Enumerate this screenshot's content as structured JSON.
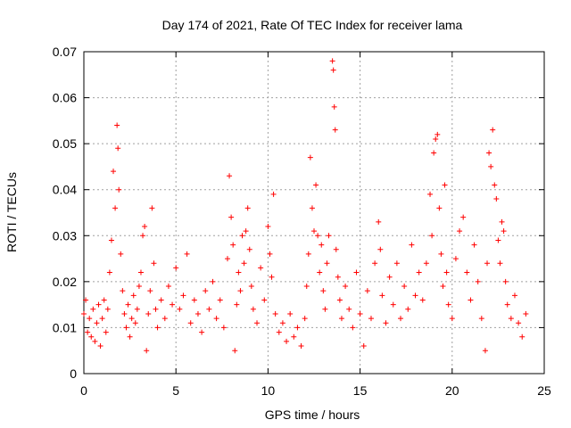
{
  "chart_data": {
    "type": "scatter",
    "title": "Day 174 of 2021, Rate Of TEC Index for receiver lama",
    "xlabel": "GPS time / hours",
    "ylabel": "ROTI / TECUs",
    "xlim": [
      0,
      25
    ],
    "ylim": [
      0,
      0.07
    ],
    "x_ticks": [
      0,
      5,
      10,
      15,
      20,
      25
    ],
    "x_tick_labels": [
      "0",
      "5",
      "10",
      "15",
      "20",
      "25"
    ],
    "y_ticks": [
      0,
      0.01,
      0.02,
      0.03,
      0.04,
      0.05,
      0.06,
      0.07
    ],
    "y_tick_labels": [
      "0",
      "0.01",
      "0.02",
      "0.03",
      "0.04",
      "0.05",
      "0.06",
      "0.07"
    ],
    "grid": true,
    "marker": "plus",
    "color": "#ff0000",
    "series": [
      {
        "name": "ROTI",
        "points": [
          [
            0.0,
            0.013
          ],
          [
            0.1,
            0.016
          ],
          [
            0.2,
            0.009
          ],
          [
            0.3,
            0.012
          ],
          [
            0.4,
            0.008
          ],
          [
            0.5,
            0.014
          ],
          [
            0.6,
            0.007
          ],
          [
            0.7,
            0.011
          ],
          [
            0.8,
            0.015
          ],
          [
            0.9,
            0.006
          ],
          [
            1.0,
            0.012
          ],
          [
            1.1,
            0.016
          ],
          [
            1.2,
            0.009
          ],
          [
            1.3,
            0.014
          ],
          [
            1.4,
            0.022
          ],
          [
            1.5,
            0.029
          ],
          [
            1.6,
            0.044
          ],
          [
            1.7,
            0.036
          ],
          [
            1.8,
            0.054
          ],
          [
            1.85,
            0.049
          ],
          [
            1.9,
            0.04
          ],
          [
            2.0,
            0.026
          ],
          [
            2.1,
            0.018
          ],
          [
            2.2,
            0.013
          ],
          [
            2.3,
            0.01
          ],
          [
            2.4,
            0.015
          ],
          [
            2.5,
            0.008
          ],
          [
            2.6,
            0.012
          ],
          [
            2.7,
            0.017
          ],
          [
            2.8,
            0.011
          ],
          [
            2.9,
            0.014
          ],
          [
            3.0,
            0.019
          ],
          [
            3.1,
            0.022
          ],
          [
            3.2,
            0.03
          ],
          [
            3.3,
            0.032
          ],
          [
            3.4,
            0.005
          ],
          [
            3.5,
            0.013
          ],
          [
            3.6,
            0.018
          ],
          [
            3.7,
            0.036
          ],
          [
            3.8,
            0.024
          ],
          [
            3.9,
            0.014
          ],
          [
            4.0,
            0.01
          ],
          [
            4.2,
            0.016
          ],
          [
            4.4,
            0.012
          ],
          [
            4.6,
            0.019
          ],
          [
            4.8,
            0.015
          ],
          [
            5.0,
            0.023
          ],
          [
            5.2,
            0.014
          ],
          [
            5.4,
            0.017
          ],
          [
            5.6,
            0.026
          ],
          [
            5.8,
            0.011
          ],
          [
            6.0,
            0.016
          ],
          [
            6.2,
            0.013
          ],
          [
            6.4,
            0.009
          ],
          [
            6.6,
            0.018
          ],
          [
            6.8,
            0.014
          ],
          [
            7.0,
            0.02
          ],
          [
            7.2,
            0.012
          ],
          [
            7.4,
            0.016
          ],
          [
            7.6,
            0.01
          ],
          [
            7.8,
            0.025
          ],
          [
            7.9,
            0.043
          ],
          [
            8.0,
            0.034
          ],
          [
            8.1,
            0.028
          ],
          [
            8.2,
            0.005
          ],
          [
            8.3,
            0.015
          ],
          [
            8.4,
            0.022
          ],
          [
            8.5,
            0.018
          ],
          [
            8.6,
            0.03
          ],
          [
            8.7,
            0.024
          ],
          [
            8.8,
            0.031
          ],
          [
            8.9,
            0.036
          ],
          [
            9.0,
            0.027
          ],
          [
            9.1,
            0.019
          ],
          [
            9.2,
            0.014
          ],
          [
            9.4,
            0.011
          ],
          [
            9.6,
            0.023
          ],
          [
            9.8,
            0.016
          ],
          [
            10.0,
            0.032
          ],
          [
            10.1,
            0.026
          ],
          [
            10.2,
            0.021
          ],
          [
            10.3,
            0.039
          ],
          [
            10.4,
            0.013
          ],
          [
            10.6,
            0.009
          ],
          [
            10.8,
            0.011
          ],
          [
            11.0,
            0.007
          ],
          [
            11.2,
            0.013
          ],
          [
            11.4,
            0.008
          ],
          [
            11.6,
            0.01
          ],
          [
            11.8,
            0.006
          ],
          [
            12.0,
            0.012
          ],
          [
            12.1,
            0.019
          ],
          [
            12.2,
            0.026
          ],
          [
            12.3,
            0.047
          ],
          [
            12.4,
            0.036
          ],
          [
            12.5,
            0.031
          ],
          [
            12.6,
            0.041
          ],
          [
            12.7,
            0.03
          ],
          [
            12.8,
            0.022
          ],
          [
            12.9,
            0.028
          ],
          [
            13.0,
            0.018
          ],
          [
            13.1,
            0.014
          ],
          [
            13.2,
            0.024
          ],
          [
            13.3,
            0.03
          ],
          [
            13.5,
            0.068
          ],
          [
            13.55,
            0.066
          ],
          [
            13.6,
            0.058
          ],
          [
            13.65,
            0.053
          ],
          [
            13.7,
            0.027
          ],
          [
            13.8,
            0.021
          ],
          [
            13.9,
            0.016
          ],
          [
            14.0,
            0.012
          ],
          [
            14.2,
            0.019
          ],
          [
            14.4,
            0.014
          ],
          [
            14.6,
            0.01
          ],
          [
            14.8,
            0.022
          ],
          [
            15.0,
            0.013
          ],
          [
            15.2,
            0.006
          ],
          [
            15.4,
            0.018
          ],
          [
            15.6,
            0.012
          ],
          [
            15.8,
            0.024
          ],
          [
            16.0,
            0.033
          ],
          [
            16.1,
            0.027
          ],
          [
            16.2,
            0.017
          ],
          [
            16.4,
            0.011
          ],
          [
            16.6,
            0.021
          ],
          [
            16.8,
            0.015
          ],
          [
            17.0,
            0.024
          ],
          [
            17.2,
            0.012
          ],
          [
            17.4,
            0.019
          ],
          [
            17.6,
            0.014
          ],
          [
            17.8,
            0.028
          ],
          [
            18.0,
            0.017
          ],
          [
            18.2,
            0.022
          ],
          [
            18.4,
            0.016
          ],
          [
            18.6,
            0.024
          ],
          [
            18.8,
            0.039
          ],
          [
            18.9,
            0.03
          ],
          [
            19.0,
            0.048
          ],
          [
            19.1,
            0.051
          ],
          [
            19.2,
            0.052
          ],
          [
            19.3,
            0.036
          ],
          [
            19.4,
            0.026
          ],
          [
            19.5,
            0.019
          ],
          [
            19.6,
            0.041
          ],
          [
            19.7,
            0.022
          ],
          [
            19.8,
            0.015
          ],
          [
            20.0,
            0.012
          ],
          [
            20.2,
            0.025
          ],
          [
            20.4,
            0.031
          ],
          [
            20.6,
            0.034
          ],
          [
            20.8,
            0.022
          ],
          [
            21.0,
            0.016
          ],
          [
            21.2,
            0.028
          ],
          [
            21.4,
            0.02
          ],
          [
            21.6,
            0.012
          ],
          [
            21.8,
            0.005
          ],
          [
            21.9,
            0.024
          ],
          [
            22.0,
            0.048
          ],
          [
            22.1,
            0.045
          ],
          [
            22.2,
            0.053
          ],
          [
            22.3,
            0.041
          ],
          [
            22.4,
            0.038
          ],
          [
            22.5,
            0.029
          ],
          [
            22.6,
            0.024
          ],
          [
            22.7,
            0.033
          ],
          [
            22.8,
            0.031
          ],
          [
            22.9,
            0.02
          ],
          [
            23.0,
            0.015
          ],
          [
            23.2,
            0.012
          ],
          [
            23.4,
            0.017
          ],
          [
            23.6,
            0.011
          ],
          [
            23.8,
            0.008
          ],
          [
            24.0,
            0.013
          ]
        ]
      }
    ]
  }
}
